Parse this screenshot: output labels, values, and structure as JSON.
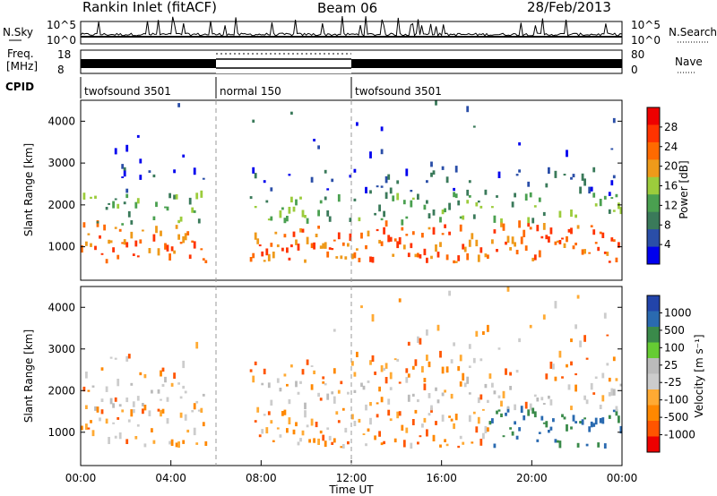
{
  "header": {
    "site": "Rankin Inlet (fitACF)",
    "beam": "Beam 06",
    "date": "28/Feb/2013"
  },
  "top_panels": {
    "nsky_label": "N.Sky",
    "nsearch_label": "N.Search",
    "freq_label_1": "Freq.",
    "freq_label_2": "[MHz]",
    "nave_label": "Nave",
    "cpid_label": "CPID",
    "nsky_ticks": [
      "10^5",
      "10^0"
    ],
    "nsearch_ticks": [
      "10^5",
      "10^0"
    ],
    "freq_ticks": [
      "18",
      "8"
    ],
    "nave_ticks": [
      "80",
      "0"
    ]
  },
  "colors": {
    "power_scale": [
      "#0000ee",
      "#2a4ea8",
      "#3a7a5a",
      "#4aa050",
      "#9ccc3c",
      "#ee9a1a",
      "#ff6a00",
      "#ff3300",
      "#ee0000"
    ],
    "velocity_scale": [
      "#ee0000",
      "#ff5500",
      "#ff8800",
      "#ffaa33",
      "#cccccc",
      "#bbbbbb",
      "#66cc33",
      "#3a8a4a",
      "#2a6ab0",
      "#2244aa"
    ]
  },
  "chart_data": [
    {
      "type": "heatmap",
      "name_hint": "power panel",
      "ylabel": "Slant Range [km]",
      "xlabel": "",
      "colorbar_label": "Power [dB]",
      "colorbar_ticks": [
        "28",
        "24",
        "20",
        "16",
        "12",
        "8",
        "4"
      ],
      "xlim": [
        "00:00",
        "24:00"
      ],
      "ylim": [
        200,
        4500
      ],
      "yticks": [
        "1000",
        "2000",
        "3000",
        "4000"
      ],
      "cpid_segments": [
        {
          "label": "twofsound 3501",
          "start": "00:00",
          "end": "06:00"
        },
        {
          "label": "normal 150",
          "start": "06:00",
          "end": "12:00"
        },
        {
          "label": "twofsound 3501",
          "start": "12:00",
          "end": "24:00"
        }
      ]
    },
    {
      "type": "heatmap",
      "name_hint": "velocity panel",
      "ylabel": "Slant Range [km]",
      "xlabel": "Time UT",
      "colorbar_label": "Velocity [m s⁻¹]",
      "colorbar_ticks": [
        "1000",
        "500",
        "100",
        "25",
        "-25",
        "-100",
        "-500",
        "-1000"
      ],
      "xlim": [
        "00:00",
        "24:00"
      ],
      "ylim": [
        200,
        4500
      ],
      "yticks": [
        "1000",
        "2000",
        "3000",
        "4000"
      ],
      "xticks": [
        "00:00",
        "04:00",
        "08:00",
        "12:00",
        "16:00",
        "20:00",
        "00:00"
      ]
    }
  ]
}
